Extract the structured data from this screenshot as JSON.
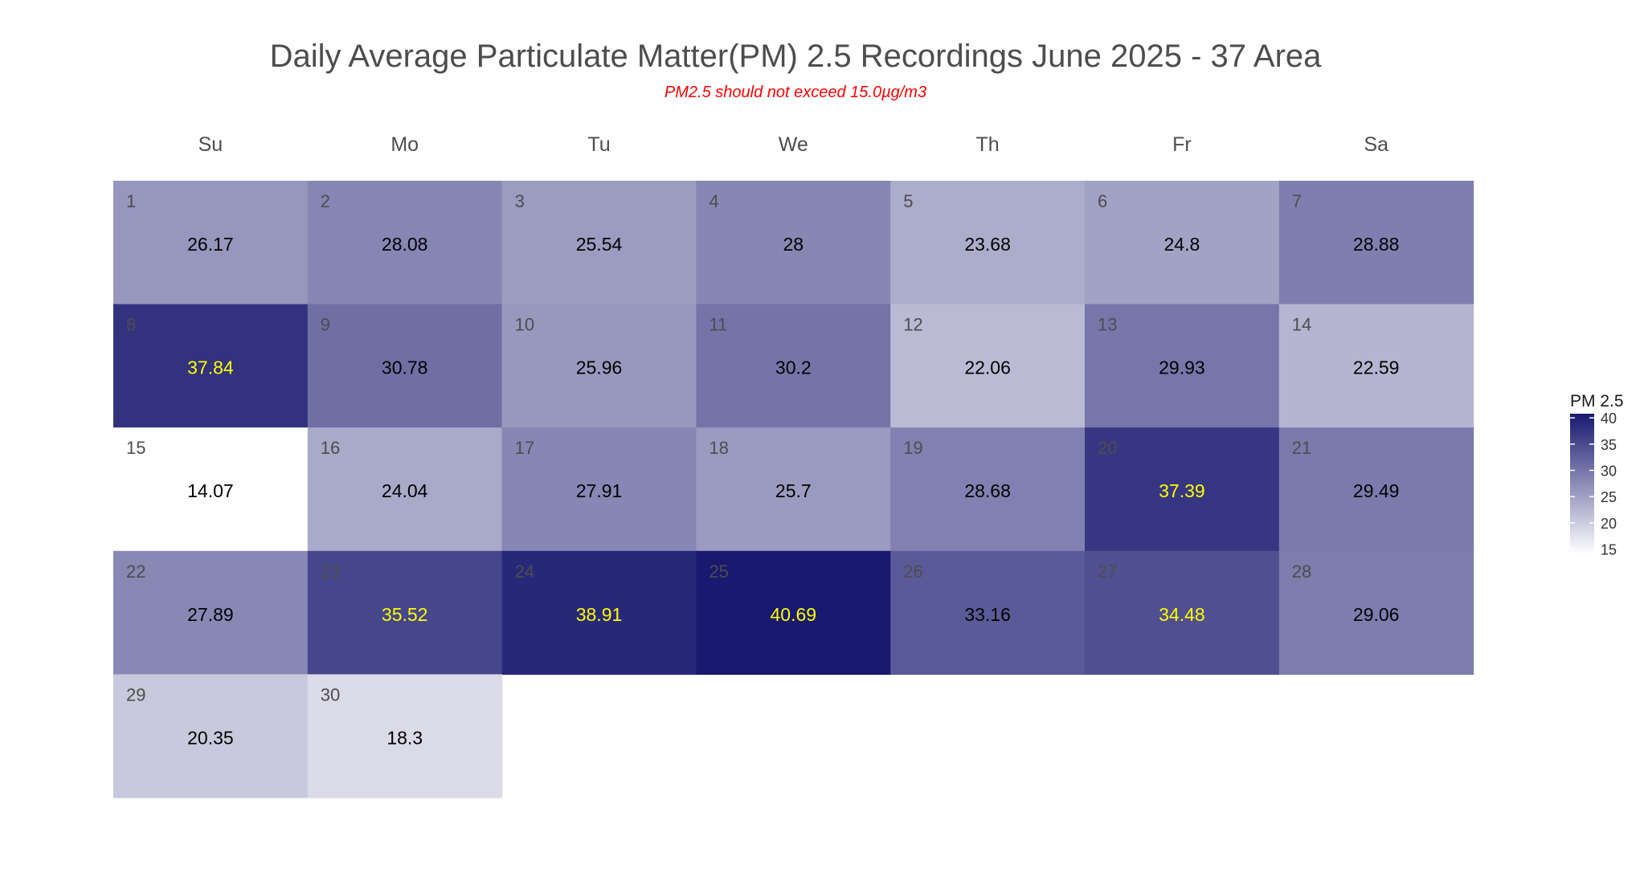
{
  "title": "Daily Average Particulate Matter(PM) 2.5 Recordings June 2025 -  37 Area",
  "subtitle": "PM2.5 should not exceed 15.0µg/m3",
  "chart_data": {
    "type": "heatmap",
    "layout": "calendar",
    "month": "June 2025",
    "weekdays": [
      "Su",
      "Mo",
      "Tu",
      "We",
      "Th",
      "Fr",
      "Sa"
    ],
    "days": [
      1,
      2,
      3,
      4,
      5,
      6,
      7,
      8,
      9,
      10,
      11,
      12,
      13,
      14,
      15,
      16,
      17,
      18,
      19,
      20,
      21,
      22,
      23,
      24,
      25,
      26,
      27,
      28,
      29,
      30
    ],
    "values": [
      26.17,
      28.08,
      25.54,
      28,
      23.68,
      24.8,
      28.88,
      37.84,
      30.78,
      25.96,
      30.2,
      22.06,
      29.93,
      22.59,
      14.07,
      24.04,
      27.91,
      25.7,
      28.68,
      37.39,
      29.49,
      27.89,
      35.52,
      38.91,
      40.69,
      33.16,
      34.48,
      29.06,
      20.35,
      18.3
    ],
    "value_labels": [
      "26.17",
      "28.08",
      "25.54",
      "28",
      "23.68",
      "24.8",
      "28.88",
      "37.84",
      "30.78",
      "25.96",
      "30.2",
      "22.06",
      "29.93",
      "22.59",
      "14.07",
      "24.04",
      "27.91",
      "25.7",
      "28.68",
      "37.39",
      "29.49",
      "27.89",
      "35.52",
      "38.91",
      "40.69",
      "33.16",
      "34.48",
      "29.06",
      "20.35",
      "18.3"
    ],
    "first_weekday_index": 0,
    "color_scale": {
      "low": "#ffffff",
      "high": "#191970",
      "min": 14.07,
      "max": 40.69
    },
    "highlight_threshold": 34,
    "highlight_text_color": "#ffff00",
    "normal_text_color": "#000000",
    "day_number_color": "#4d4d4d",
    "legend": {
      "title": "PM 2.5",
      "ticks": [
        15,
        20,
        25,
        30,
        35,
        40
      ],
      "tick_labels": [
        "15",
        "20",
        "25",
        "30",
        "35",
        "40"
      ],
      "placement": "right"
    }
  }
}
